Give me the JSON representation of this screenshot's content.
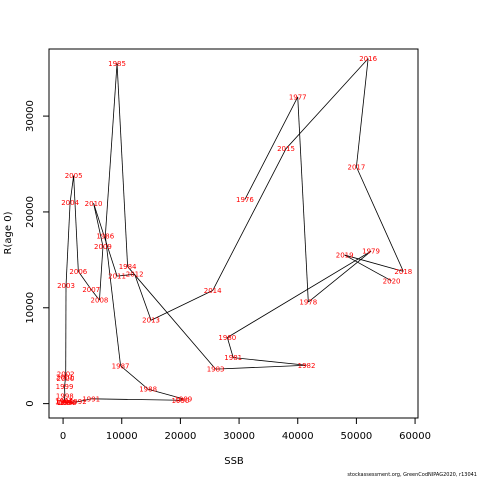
{
  "chart_data": {
    "type": "line",
    "xlabel": "SSB",
    "ylabel": "R(age 0)",
    "xlim": [
      -2400,
      60500
    ],
    "ylim": [
      -1500,
      37000
    ],
    "x_ticks": [
      0,
      10000,
      20000,
      30000,
      40000,
      50000,
      60000
    ],
    "y_ticks": [
      0,
      10000,
      20000,
      30000
    ],
    "line_color": "#000000",
    "label_color": "#ff0000",
    "points": [
      {
        "year": "1976",
        "x": 31000,
        "y": 21300
      },
      {
        "year": "1977",
        "x": 40000,
        "y": 32000
      },
      {
        "year": "1978",
        "x": 41800,
        "y": 10600
      },
      {
        "year": "1979",
        "x": 52500,
        "y": 15900
      },
      {
        "year": "1980",
        "x": 28000,
        "y": 6900
      },
      {
        "year": "1981",
        "x": 29000,
        "y": 4800
      },
      {
        "year": "1982",
        "x": 41500,
        "y": 4000
      },
      {
        "year": "1983",
        "x": 26000,
        "y": 3600
      },
      {
        "year": "1984",
        "x": 11000,
        "y": 14300
      },
      {
        "year": "1985",
        "x": 9200,
        "y": 35500
      },
      {
        "year": "1986",
        "x": 7200,
        "y": 17500
      },
      {
        "year": "1987",
        "x": 9800,
        "y": 3950
      },
      {
        "year": "1988",
        "x": 14500,
        "y": 1500
      },
      {
        "year": "1989",
        "x": 20500,
        "y": 500
      },
      {
        "year": "1990",
        "x": 20000,
        "y": 350
      },
      {
        "year": "1991",
        "x": 4800,
        "y": 500
      },
      {
        "year": "1992",
        "x": 2500,
        "y": 200
      },
      {
        "year": "1993",
        "x": 800,
        "y": 100
      },
      {
        "year": "1994",
        "x": 500,
        "y": 120
      },
      {
        "year": "1995",
        "x": 300,
        "y": 180
      },
      {
        "year": "1996",
        "x": 200,
        "y": 150
      },
      {
        "year": "1997",
        "x": 150,
        "y": 250
      },
      {
        "year": "1998",
        "x": 300,
        "y": 800
      },
      {
        "year": "1999",
        "x": 250,
        "y": 1800
      },
      {
        "year": "2000",
        "x": 400,
        "y": 2600
      },
      {
        "year": "2001",
        "x": 300,
        "y": 2800
      },
      {
        "year": "2002",
        "x": 450,
        "y": 3100
      },
      {
        "year": "2003",
        "x": 500,
        "y": 12300
      },
      {
        "year": "2004",
        "x": 1200,
        "y": 21000
      },
      {
        "year": "2005",
        "x": 1800,
        "y": 23800
      },
      {
        "year": "2006",
        "x": 2600,
        "y": 13800
      },
      {
        "year": "2007",
        "x": 4800,
        "y": 11900
      },
      {
        "year": "2008",
        "x": 6200,
        "y": 10800
      },
      {
        "year": "2009",
        "x": 6800,
        "y": 16400
      },
      {
        "year": "2010",
        "x": 5200,
        "y": 20900
      },
      {
        "year": "2011",
        "x": 9200,
        "y": 13300
      },
      {
        "year": "2012",
        "x": 12200,
        "y": 13500
      },
      {
        "year": "2013",
        "x": 15000,
        "y": 8700
      },
      {
        "year": "2014",
        "x": 25500,
        "y": 11800
      },
      {
        "year": "2015",
        "x": 38000,
        "y": 26600
      },
      {
        "year": "2016",
        "x": 52000,
        "y": 36000
      },
      {
        "year": "2017",
        "x": 50000,
        "y": 24700
      },
      {
        "year": "2018",
        "x": 58000,
        "y": 13800
      },
      {
        "year": "2019",
        "x": 48000,
        "y": 15500
      },
      {
        "year": "2020",
        "x": 56000,
        "y": 12800
      }
    ]
  },
  "footer": {
    "text": "stockassessment.org, GreenCodNIPAG2020, r13041"
  }
}
